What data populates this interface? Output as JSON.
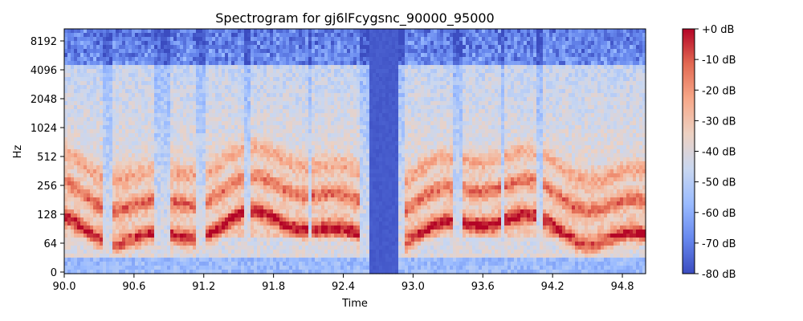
{
  "chart_data": {
    "type": "heatmap",
    "title": "Spectrogram for gj6lFcygsnc_90000_95000",
    "xlabel": "Time",
    "ylabel": "Hz",
    "xlim": [
      90.0,
      95.0
    ],
    "x_ticks": [
      90.0,
      90.6,
      91.2,
      91.8,
      92.4,
      93.0,
      93.6,
      94.2,
      94.8
    ],
    "x_tick_labels": [
      "90.0",
      "90.6",
      "91.2",
      "91.8",
      "92.4",
      "93.0",
      "93.6",
      "94.2",
      "94.8"
    ],
    "y_scale": "log2",
    "y_ticks": [
      0,
      64,
      128,
      256,
      512,
      1024,
      2048,
      4096,
      8192
    ],
    "y_tick_labels": [
      "0",
      "64",
      "128",
      "256",
      "512",
      "1024",
      "2048",
      "4096",
      "8192"
    ],
    "colormap": "coolwarm",
    "colorbar": {
      "range": [
        -80,
        0
      ],
      "ticks": [
        0,
        -10,
        -20,
        -30,
        -40,
        -50,
        -60,
        -70,
        -80
      ],
      "tick_labels": [
        "+0 dB",
        "-10 dB",
        "-20 dB",
        "-30 dB",
        "-40 dB",
        "-50 dB",
        "-60 dB",
        "-70 dB",
        "-80 dB"
      ],
      "colors": [
        "#3b4cc0",
        "#6788ee",
        "#9abbff",
        "#c9d7f0",
        "#edd1c2",
        "#f7a889",
        "#e26952",
        "#b40426"
      ]
    },
    "silence_interval": [
      92.62,
      92.88
    ],
    "grid": false,
    "legend": "none"
  }
}
